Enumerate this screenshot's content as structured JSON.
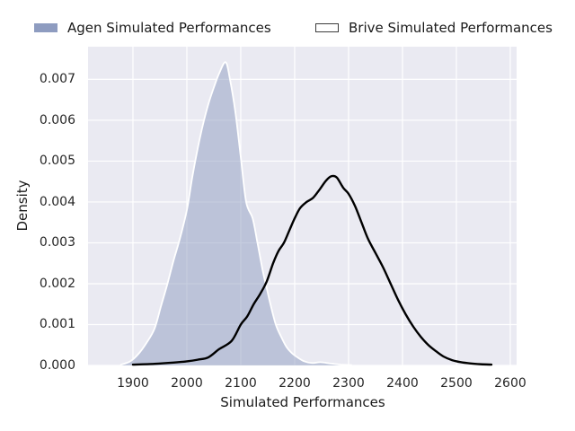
{
  "colors": {
    "figure_bg": "#ffffff",
    "plot_bg": "#eaeaf2",
    "grid": "#ffffff",
    "agen_solid": "#8e9cc0",
    "agen_fill": "rgba(142,156,192,0.5)",
    "agen_edge": "#ffffff",
    "brive_line": "#000000",
    "text": "#262626"
  },
  "legend": {
    "items": [
      {
        "label": "Agen Simulated Performances",
        "swatch": "filled"
      },
      {
        "label": "Brive Simulated Performances",
        "swatch": "outlined"
      }
    ]
  },
  "chart_data": {
    "type": "area",
    "subtype": "kde-density",
    "title": "",
    "xlabel": "Simulated Performances",
    "ylabel": "Density",
    "xlim": [
      1816.7,
      2611.7
    ],
    "ylim": [
      0,
      0.0078
    ],
    "grid": true,
    "legend_position": "top",
    "x_ticks": [
      {
        "label": "1900",
        "v": 1900
      },
      {
        "label": "2000",
        "v": 2000
      },
      {
        "label": "2100",
        "v": 2100
      },
      {
        "label": "2200",
        "v": 2200
      },
      {
        "label": "2300",
        "v": 2300
      },
      {
        "label": "2400",
        "v": 2400
      },
      {
        "label": "2500",
        "v": 2500
      },
      {
        "label": "2600",
        "v": 2600
      }
    ],
    "y_ticks": [
      {
        "label": "0.000",
        "v": 0.0
      },
      {
        "label": "0.001",
        "v": 0.001
      },
      {
        "label": "0.002",
        "v": 0.002
      },
      {
        "label": "0.003",
        "v": 0.003
      },
      {
        "label": "0.004",
        "v": 0.004
      },
      {
        "label": "0.005",
        "v": 0.005
      },
      {
        "label": "0.006",
        "v": 0.006
      },
      {
        "label": "0.007",
        "v": 0.007
      }
    ],
    "series": [
      {
        "name": "Agen Simulated Performances",
        "style": "filled-kde",
        "peak": {
          "x": 2072,
          "density": 0.00742
        },
        "points": [
          [
            1878,
            2e-05
          ],
          [
            1895,
            0.0001
          ],
          [
            1910,
            0.00028
          ],
          [
            1925,
            0.00055
          ],
          [
            1940,
            0.0009
          ],
          [
            1952,
            0.00145
          ],
          [
            1963,
            0.00195
          ],
          [
            1975,
            0.00255
          ],
          [
            1987,
            0.0031
          ],
          [
            2000,
            0.0038
          ],
          [
            2010,
            0.0046
          ],
          [
            2020,
            0.0053
          ],
          [
            2030,
            0.0059
          ],
          [
            2040,
            0.0064
          ],
          [
            2050,
            0.0068
          ],
          [
            2060,
            0.00715
          ],
          [
            2072,
            0.00742
          ],
          [
            2080,
            0.007
          ],
          [
            2090,
            0.0062
          ],
          [
            2100,
            0.0051
          ],
          [
            2110,
            0.004
          ],
          [
            2122,
            0.0036
          ],
          [
            2131,
            0.003
          ],
          [
            2141,
            0.0023
          ],
          [
            2148,
            0.0019
          ],
          [
            2155,
            0.0015
          ],
          [
            2165,
            0.001
          ],
          [
            2175,
            0.0007
          ],
          [
            2185,
            0.00045
          ],
          [
            2195,
            0.0003
          ],
          [
            2205,
            0.0002
          ],
          [
            2218,
            0.0001
          ],
          [
            2232,
            6e-05
          ],
          [
            2248,
            8e-05
          ],
          [
            2265,
            5e-05
          ],
          [
            2285,
            2e-05
          ],
          [
            2305,
            1e-05
          ]
        ]
      },
      {
        "name": "Brive Simulated Performances",
        "style": "line-kde",
        "peak": {
          "x": 2268,
          "density": 0.00463
        },
        "points": [
          [
            1900,
            2e-05
          ],
          [
            1940,
            4e-05
          ],
          [
            1975,
            7e-05
          ],
          [
            2000,
            0.0001
          ],
          [
            2020,
            0.00014
          ],
          [
            2040,
            0.0002
          ],
          [
            2060,
            0.0004
          ],
          [
            2083,
            0.0006
          ],
          [
            2100,
            0.001
          ],
          [
            2112,
            0.0012
          ],
          [
            2124,
            0.0015
          ],
          [
            2136,
            0.00175
          ],
          [
            2148,
            0.00205
          ],
          [
            2160,
            0.0025
          ],
          [
            2170,
            0.0028
          ],
          [
            2180,
            0.003
          ],
          [
            2190,
            0.0033
          ],
          [
            2200,
            0.0036
          ],
          [
            2210,
            0.00385
          ],
          [
            2222,
            0.004
          ],
          [
            2234,
            0.0041
          ],
          [
            2246,
            0.0043
          ],
          [
            2258,
            0.00452
          ],
          [
            2268,
            0.00463
          ],
          [
            2278,
            0.0046
          ],
          [
            2290,
            0.00435
          ],
          [
            2300,
            0.0042
          ],
          [
            2312,
            0.0039
          ],
          [
            2324,
            0.0035
          ],
          [
            2336,
            0.0031
          ],
          [
            2350,
            0.00275
          ],
          [
            2364,
            0.0024
          ],
          [
            2378,
            0.002
          ],
          [
            2392,
            0.0016
          ],
          [
            2406,
            0.00125
          ],
          [
            2420,
            0.00095
          ],
          [
            2434,
            0.0007
          ],
          [
            2448,
            0.0005
          ],
          [
            2462,
            0.00035
          ],
          [
            2476,
            0.00022
          ],
          [
            2492,
            0.00013
          ],
          [
            2508,
            8e-05
          ],
          [
            2525,
            5e-05
          ],
          [
            2545,
            3e-05
          ],
          [
            2565,
            2e-05
          ]
        ]
      }
    ]
  }
}
